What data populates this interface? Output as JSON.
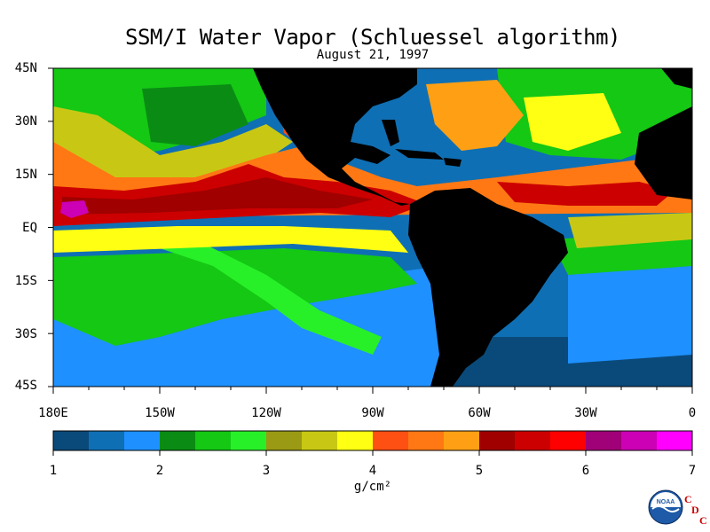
{
  "header": {
    "title": "SSM/I Water Vapor (Schluessel algorithm)",
    "date": "August 21, 1997"
  },
  "axes": {
    "latitude_labels": [
      "45N",
      "30N",
      "15N",
      "EQ",
      "15S",
      "30S",
      "45S"
    ],
    "longitude_labels": [
      "180E",
      "150W",
      "120W",
      "90W",
      "60W",
      "30W",
      "0"
    ]
  },
  "colorbar": {
    "tick_labels": [
      "1",
      "2",
      "3",
      "4",
      "5",
      "6",
      "7"
    ],
    "units": "g/cm²",
    "colors": [
      "#0a4a7a",
      "#0f6fb4",
      "#1e90ff",
      "#0a8c14",
      "#14c814",
      "#28f028",
      "#9a9a14",
      "#c8c814",
      "#ffff14",
      "#ff5014",
      "#ff7814",
      "#ffa014",
      "#a00000",
      "#cc0000",
      "#ff0000",
      "#a00078",
      "#cc00b4",
      "#ff00ff"
    ]
  },
  "logo": {
    "badge_text": "NOAA",
    "cdc_letters": [
      "C",
      "D",
      "C"
    ]
  },
  "map_colors": {
    "land": "#000000",
    "ocean_dry": "#0a4a7a",
    "ocean_blue": "#1e90ff",
    "green": "#14c814",
    "yellow": "#ffff14",
    "orange": "#ff7814",
    "red": "#cc0000",
    "dark_red": "#a00000",
    "magenta": "#cc00b4"
  }
}
